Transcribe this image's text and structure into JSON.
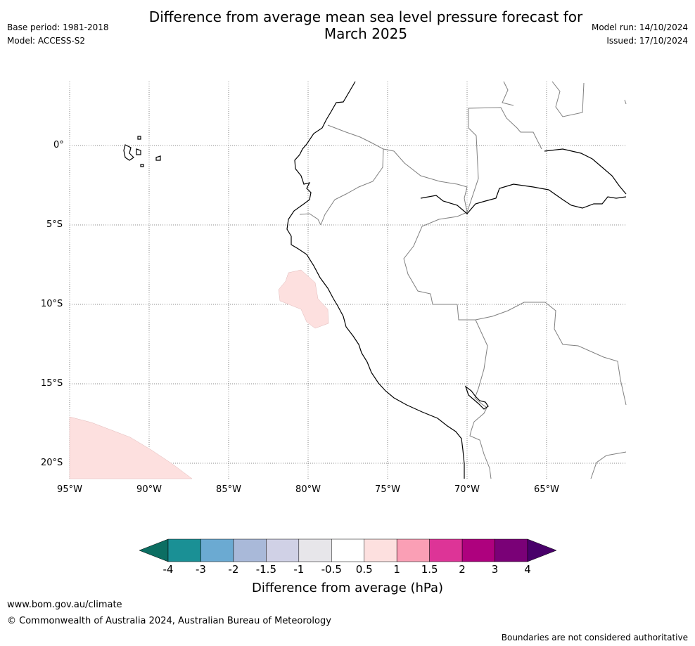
{
  "header": {
    "title_line1": "Difference from average mean sea level pressure forecast for",
    "title_line2": "March 2025",
    "base_period": "Base period: 1981-2018",
    "model": "Model: ACCESS-S2",
    "model_run": "Model run: 14/10/2024",
    "issued": "Issued: 17/10/2024"
  },
  "map": {
    "lat_labels": [
      "0°",
      "5°S",
      "10°S",
      "15°S",
      "20°S"
    ],
    "lon_labels": [
      "95°W",
      "90°W",
      "85°W",
      "80°W",
      "75°W",
      "70°W",
      "65°W"
    ],
    "extent": {
      "lon": [
        -95,
        -60
      ],
      "lat": [
        -21,
        4
      ]
    },
    "anomaly_region_colors": {
      "0.5_to_1": "#fde0df"
    }
  },
  "colorbar": {
    "ticks": [
      "-4",
      "-3",
      "-2",
      "-1.5",
      "-1",
      "-0.5",
      "0.5",
      "1",
      "1.5",
      "2",
      "3",
      "4"
    ],
    "colors": [
      "#1a9095",
      "#6baad2",
      "#a9b9d9",
      "#d0d1e6",
      "#e7e6ea",
      "#ffffff",
      "#fde0df",
      "#fa9fb5",
      "#dd3497",
      "#ae017e",
      "#7a0177"
    ],
    "under_color": "#0c6e62",
    "over_color": "#49006a",
    "title": "Difference from average (hPa)"
  },
  "footer": {
    "website": "www.bom.gov.au/climate",
    "copyright": "© Commonwealth of Australia 2024, Australian Bureau of Meteorology",
    "disclaimer": "Boundaries are not considered authoritative"
  }
}
